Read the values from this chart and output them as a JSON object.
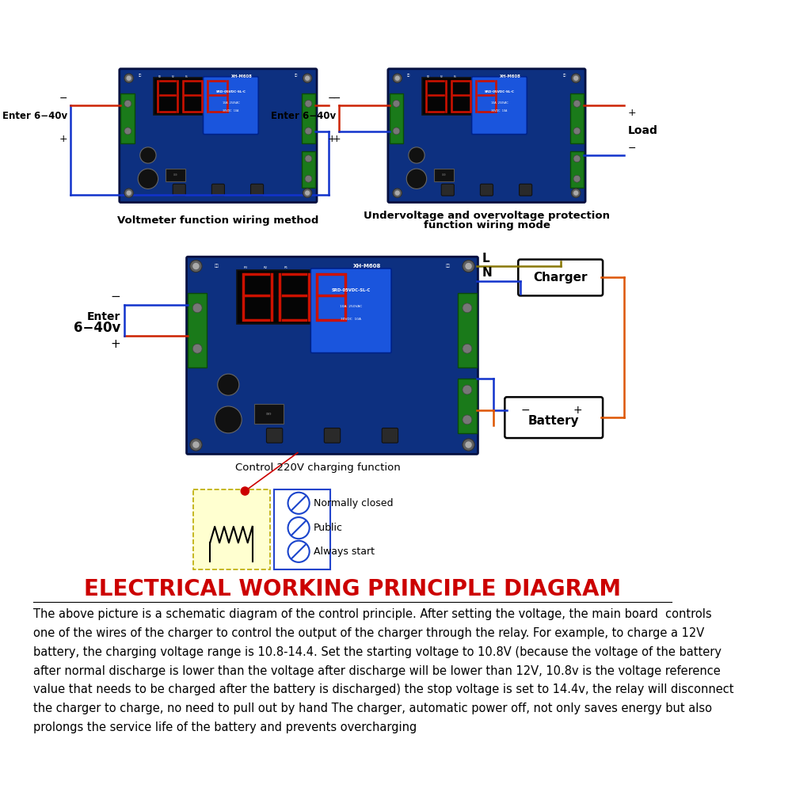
{
  "bg_color": "#ffffff",
  "title_text": "ELECTRICAL WORKING PRINCIPLE DIAGRAM",
  "title_color": "#cc0000",
  "title_fontsize": 20,
  "body_text_lines": [
    "The above picture is a schematic diagram of the control principle. After setting the voltage, the main board  controls",
    "one of the wires of the charger to control the output of the charger through the relay. For example, to charge a 12V",
    "battery, the charging voltage range is 10.8-14.4. Set the starting voltage to 10.8V (because the voltage of the battery",
    "after normal discharge is lower than the voltage after discharge will be lower than 12V, 10.8v is the voltage reference",
    "value that needs to be charged after the battery is discharged) the stop voltage is set to 14.4v, the relay will disconnect",
    "the charger to charge, no need to pull out by hand The charger, automatic power off, not only saves energy but also",
    "prolongs the service life of the battery and prevents overcharging"
  ],
  "body_fontsize": 10.5,
  "caption1": "Voltmeter function wiring method",
  "caption2_line1": "Undervoltage and overvoltage protection",
  "caption2_line2": "function wiring mode",
  "caption3": "Control 220V charging function",
  "label_enter": "Enter 6−40v",
  "label_load": "Load",
  "label_charger": "Charger",
  "label_battery": "Battery",
  "label_L": "L",
  "label_N": "N",
  "relay_labels": [
    "Normally closed",
    "Public",
    "Always start"
  ],
  "board_color": "#0d3080",
  "board_color2": "#1040a0",
  "green_connector": "#1a7a1a",
  "display_bg": "#050505",
  "display_segment": "#cc1100",
  "relay_color": "#1a55dd",
  "wire_red": "#cc2200",
  "wire_blue": "#1133cc",
  "wire_olive": "#887700",
  "wire_orange": "#dd5500"
}
